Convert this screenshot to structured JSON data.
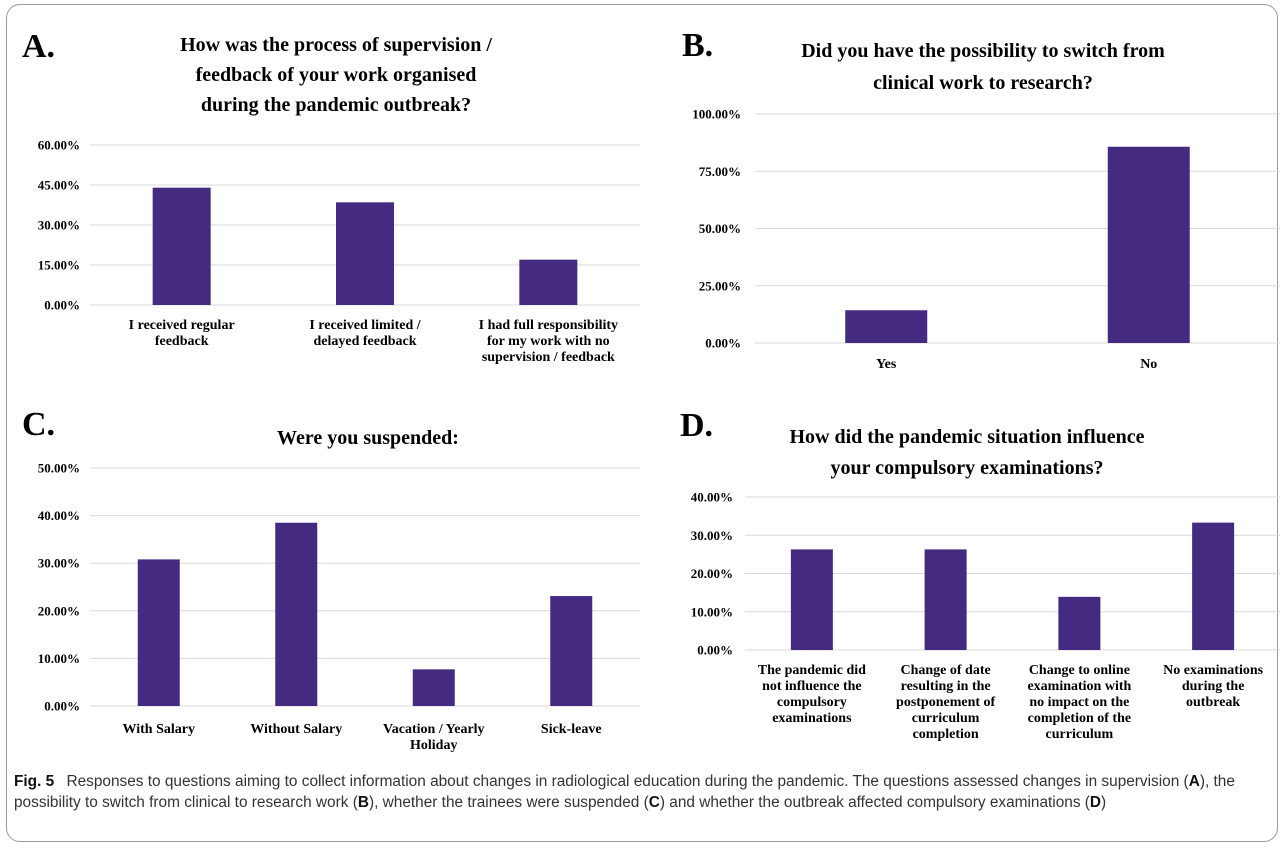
{
  "caption": {
    "label": "Fig. 5",
    "text": "Responses to questions aiming to collect information about changes in radiological education during the pandemic. The questions assessed changes in supervision (A), the possibility to switch from clinical to research work (B), whether the trainees were suspended (C) and whether the outbreak affected compulsory examinations (D)"
  },
  "colors": {
    "bar": "#452a82",
    "grid": "#d9d9d9"
  },
  "chart_data": [
    {
      "panel": "A.",
      "type": "bar",
      "title": [
        "How was the process of supervision /",
        "feedback of your work organised",
        "during the pandemic outbreak?"
      ],
      "categories": [
        [
          "I received regular",
          "feedback"
        ],
        [
          "I received limited /",
          "delayed feedback"
        ],
        [
          "I had full responsibility",
          "for my work with no",
          "supervision / feedback"
        ]
      ],
      "values": [
        44.0,
        38.5,
        17.0
      ],
      "yticks": [
        "0.00%",
        "15.00%",
        "30.00%",
        "45.00%",
        "60.00%"
      ],
      "ylim": [
        0,
        60
      ],
      "grid": true
    },
    {
      "panel": "B.",
      "type": "bar",
      "title": [
        "Did you have the possibility to switch from",
        "clinical work to research?"
      ],
      "categories": [
        [
          "Yes"
        ],
        [
          "No"
        ]
      ],
      "values": [
        14.3,
        85.7
      ],
      "yticks": [
        "0.00%",
        "25.00%",
        "50.00%",
        "75.00%",
        "100.00%"
      ],
      "ylim": [
        0,
        100
      ],
      "grid": true
    },
    {
      "panel": "C.",
      "type": "bar",
      "title": [
        "Were you suspended:"
      ],
      "categories": [
        [
          "With Salary"
        ],
        [
          "Without Salary"
        ],
        [
          "Vacation / Yearly",
          "Holiday"
        ],
        [
          "Sick-leave"
        ]
      ],
      "values": [
        30.8,
        38.5,
        7.7,
        23.1
      ],
      "yticks": [
        "0.00%",
        "10.00%",
        "20.00%",
        "30.00%",
        "40.00%",
        "50.00%"
      ],
      "ylim": [
        0,
        50
      ],
      "grid": true
    },
    {
      "panel": "D.",
      "type": "bar",
      "title": [
        "How did the pandemic situation influence",
        "your compulsory examinations?"
      ],
      "categories": [
        [
          "The pandemic did",
          "not influence the",
          "compulsory",
          "examinations"
        ],
        [
          "Change of date",
          "resulting in the",
          "postponement of",
          "curriculum",
          "completion"
        ],
        [
          "Change to online",
          "examination with",
          "no impact on the",
          "completion of the",
          "curriculum"
        ],
        [
          "No examinations",
          "during the",
          "outbreak"
        ]
      ],
      "values": [
        26.3,
        26.3,
        13.9,
        33.3
      ],
      "yticks": [
        "0.00%",
        "10.00%",
        "20.00%",
        "30.00%",
        "40.00%"
      ],
      "ylim": [
        0,
        40
      ],
      "grid": true
    }
  ]
}
